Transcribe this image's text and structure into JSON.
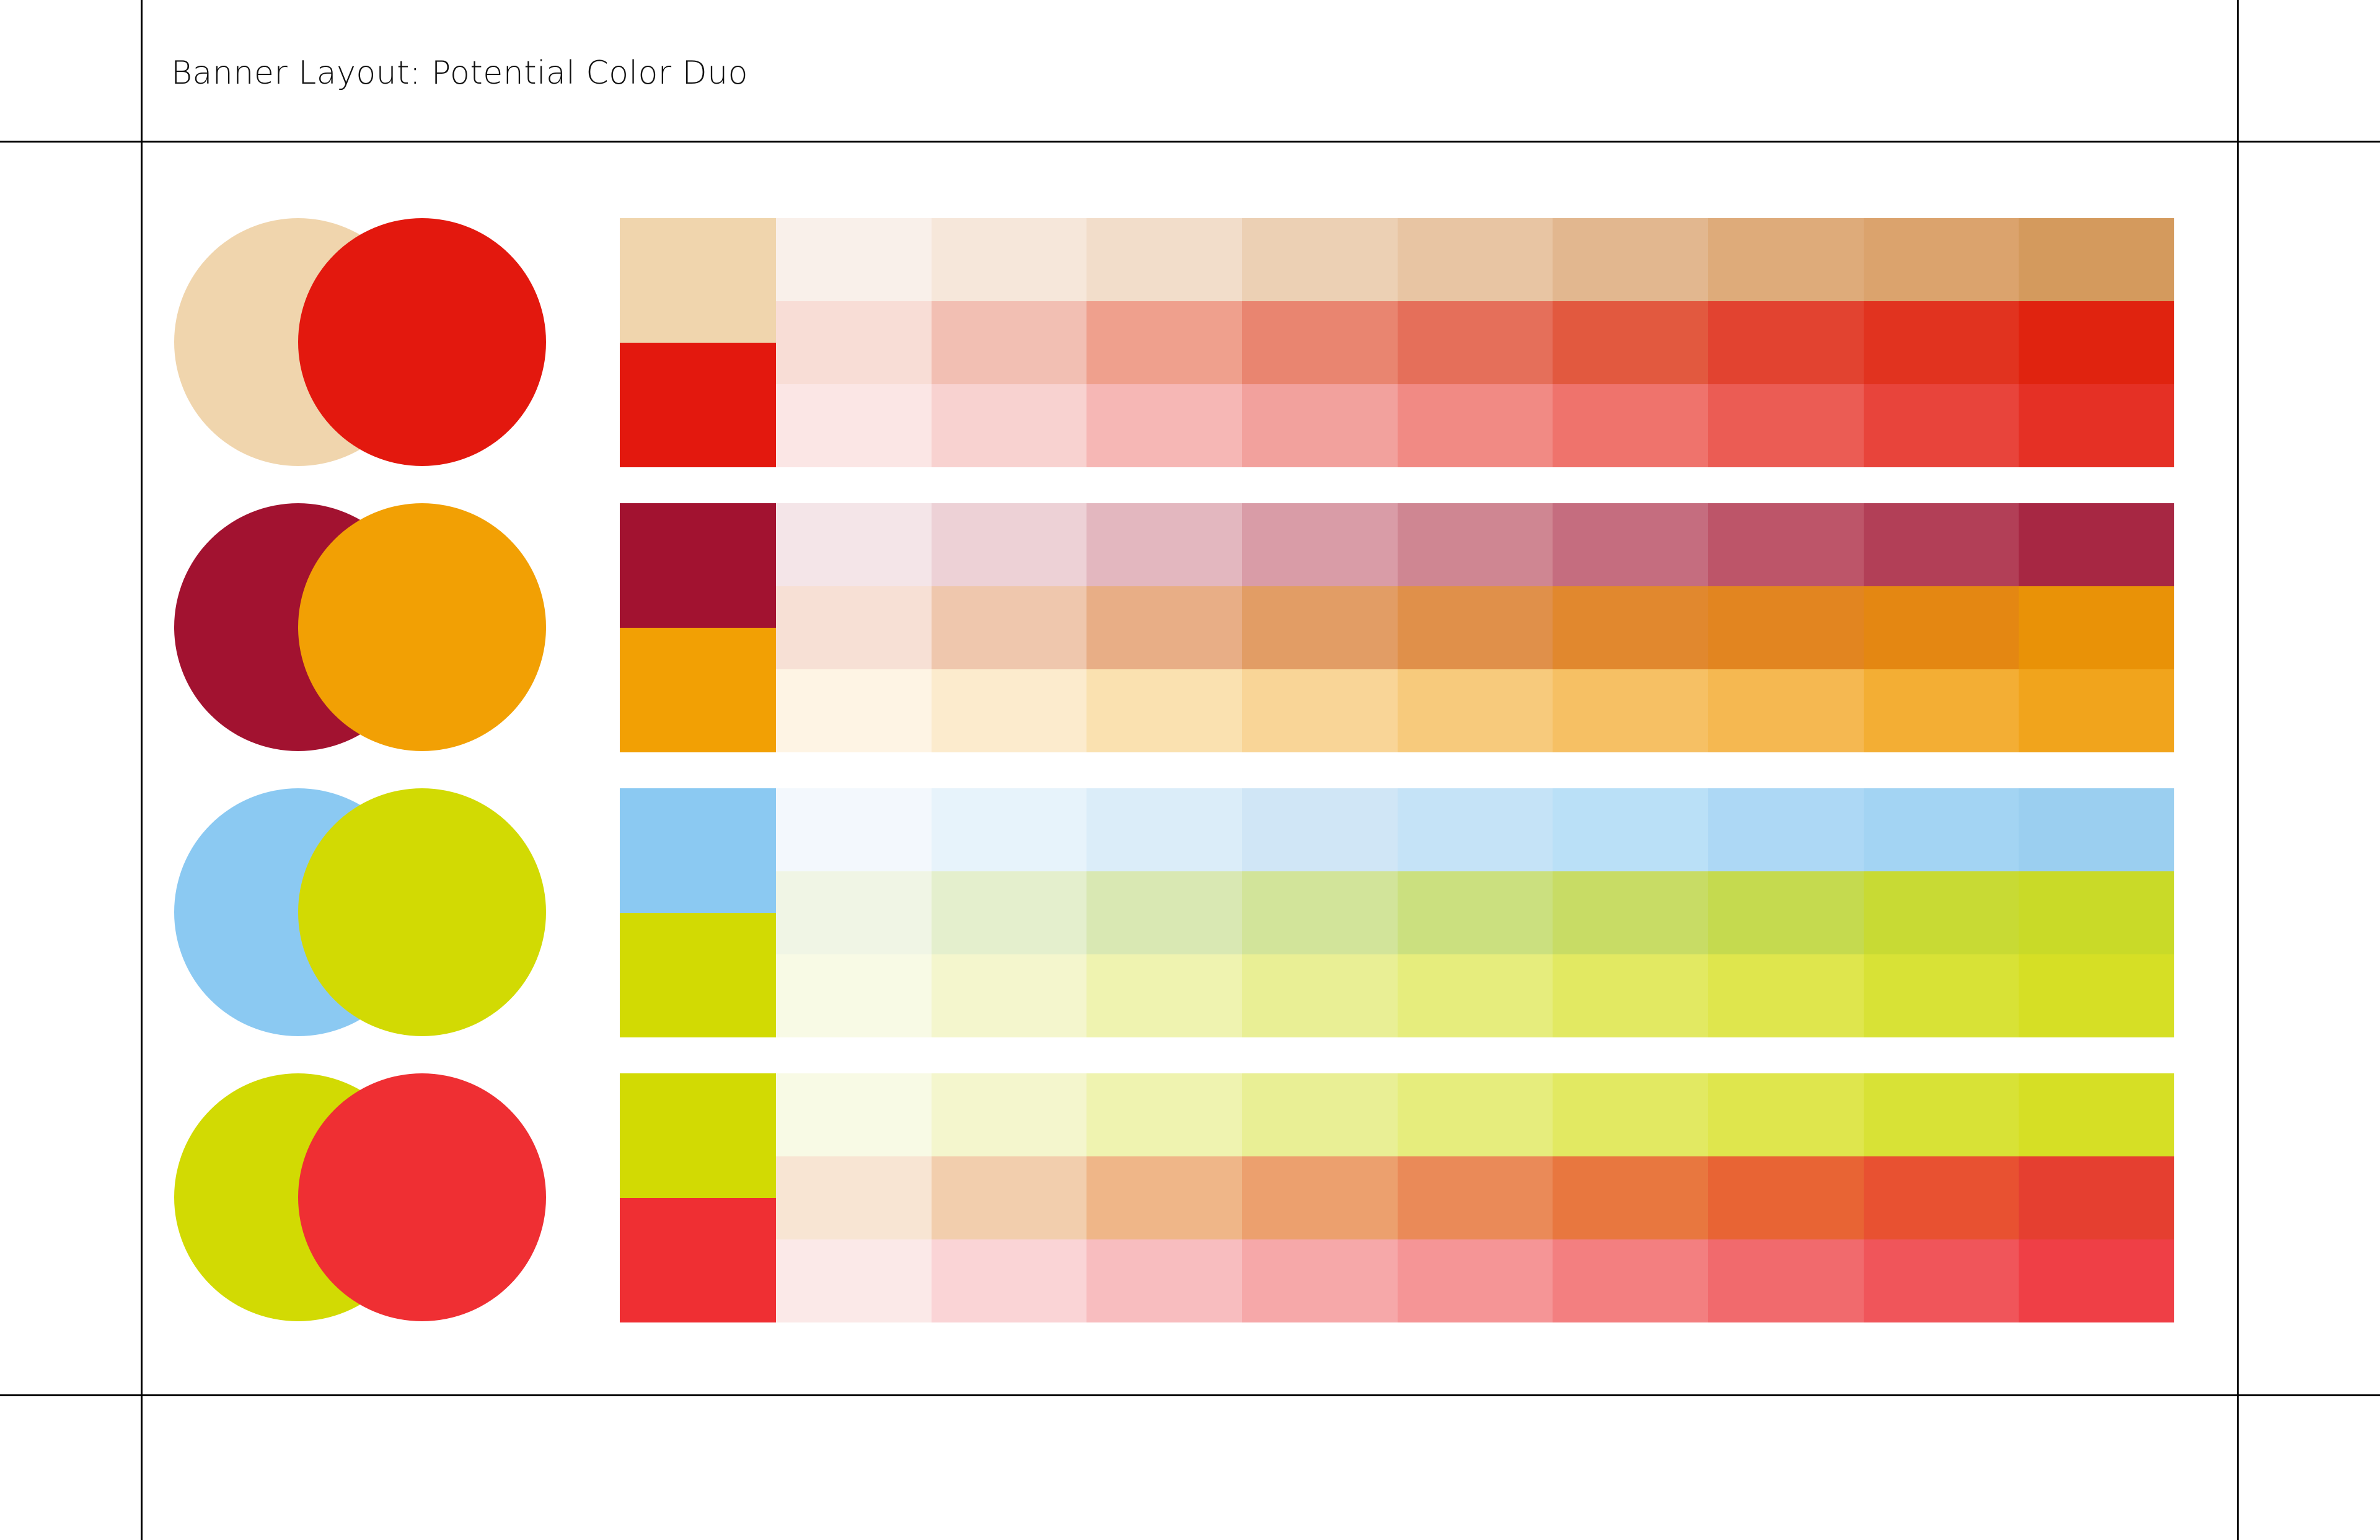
{
  "page": {
    "title": "Banner Layout: Potential Color Duo"
  },
  "duos": [
    {
      "primary": "#f0d5ad",
      "secondary": "#e3180e",
      "tints": [
        [
          "#f9f0ea",
          "#f6e7da",
          "#f2ddca",
          "#ecd0b4",
          "#e8c5a3",
          "#e2b78f",
          "#deab7a",
          "#dba36d",
          "#d49a5d"
        ],
        [
          "#f8ddd6",
          "#f2bfb3",
          "#efa08d",
          "#e98570",
          "#e56f5a",
          "#e2593f",
          "#e24330",
          "#e1331f",
          "#e0230f"
        ],
        [
          "#fbe6e5",
          "#f8d2d0",
          "#f6b7b5",
          "#f2a19d",
          "#f18a84",
          "#ef736c",
          "#eb5c54",
          "#e8443b",
          "#e53025"
        ]
      ]
    },
    {
      "primary": "#a21230",
      "secondary": "#f2a004",
      "tints": [
        [
          "#f4e5e8",
          "#edd1d6",
          "#e3b7bf",
          "#d99ca7",
          "#cf8692",
          "#c56d7f",
          "#bd5569",
          "#b23f57",
          "#a72743"
        ],
        [
          "#f7e0d5",
          "#efc7ad",
          "#e8ae86",
          "#e29d65",
          "#e0904a",
          "#e1882e",
          "#e28520",
          "#e48712",
          "#e99207"
        ],
        [
          "#fef4e4",
          "#fcebcd",
          "#fae1b0",
          "#f9d597",
          "#f7ca7c",
          "#f6c064",
          "#f5b851",
          "#f3ae34",
          "#f1a41c"
        ]
      ]
    },
    {
      "primary": "#8bc9f2",
      "secondary": "#d2da03",
      "tints": [
        [
          "#f3f8fd",
          "#e7f3fb",
          "#dbedf9",
          "#d0e6f6",
          "#c5e3f7",
          "#bae0f7",
          "#add8f5",
          "#a3d4f3",
          "#9bcff0"
        ],
        [
          "#f0f5e5",
          "#e4efcd",
          "#d9e8b3",
          "#d2e49a",
          "#cbe07f",
          "#c8dc65",
          "#c5da4f",
          "#c8da34",
          "#c9da28"
        ],
        [
          "#f8fae5",
          "#f4f6cd",
          "#eff3b0",
          "#e9ef95",
          "#e6ed7d",
          "#e2e962",
          "#dfe64d",
          "#d8e236",
          "#d6df25"
        ]
      ]
    },
    {
      "primary": "#d2da03",
      "secondary": "#ef2f33",
      "tints": [
        [
          "#f8fae5",
          "#f4f6cd",
          "#eff3b0",
          "#e9ef95",
          "#e6ed7d",
          "#e2e962",
          "#dfe64d",
          "#d8e236",
          "#d6df25"
        ],
        [
          "#f8e5d3",
          "#f2cead",
          "#efb688",
          "#eca06e",
          "#ea8a58",
          "#e8773f",
          "#e86434",
          "#e85131",
          "#e53f30"
        ],
        [
          "#fbe9e8",
          "#fad4d6",
          "#f8bdbf",
          "#f6a8a9",
          "#f59596",
          "#f37f80",
          "#f16a6d",
          "#f0555a",
          "#ef3f46"
        ]
      ]
    }
  ]
}
